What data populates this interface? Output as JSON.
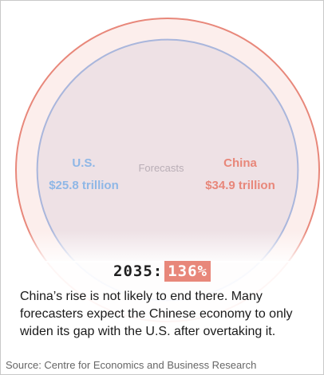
{
  "chart_data": {
    "type": "bubble",
    "year": "2035",
    "annotation": "Forecasts",
    "series": [
      {
        "name": "China",
        "value": 34.9,
        "value_label": "$34.9 trillion",
        "color": "#e8877a"
      },
      {
        "name": "U.S.",
        "value": 25.8,
        "value_label": "$25.8 trillion",
        "color": "#8fb7e6"
      }
    ],
    "unit": "trillion"
  },
  "heading": {
    "year_label": "2035:",
    "percent_label": "136%"
  },
  "description": "China’s rise is not likely to end there. Many forecasters expect the Chinese economy to only widen its gap with the U.S. after overtaking it.",
  "source": "Source: Centre for Economics and Business Research"
}
